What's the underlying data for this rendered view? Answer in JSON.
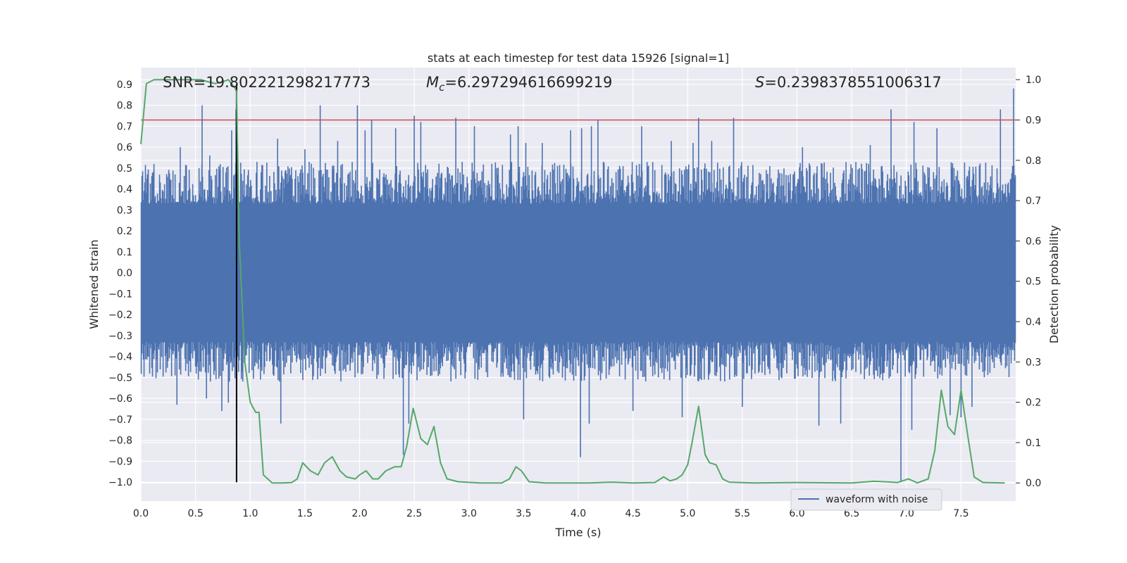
{
  "chart_data": {
    "type": "line",
    "title": "stats at each timestep for test data 15926 [signal=1]",
    "xlabel": "Time (s)",
    "ylabel": "Whitened strain",
    "y2label": "Detection probability",
    "xlim": [
      0.0,
      8.0
    ],
    "ylim": [
      -1.09,
      0.98
    ],
    "y2lim": [
      -0.045,
      1.03
    ],
    "xticks": [
      "0.0",
      "0.5",
      "1.0",
      "1.5",
      "2.0",
      "2.5",
      "3.0",
      "3.5",
      "4.0",
      "4.5",
      "5.0",
      "5.5",
      "6.0",
      "6.5",
      "7.0",
      "7.5"
    ],
    "yticks": [
      "0.9",
      "0.8",
      "0.7",
      "0.6",
      "0.5",
      "0.4",
      "0.3",
      "0.2",
      "0.1",
      "0.0",
      "−0.1",
      "−0.2",
      "−0.3",
      "−0.4",
      "−0.5",
      "−0.6",
      "−0.7",
      "−0.8",
      "−0.9",
      "−1.0"
    ],
    "y2ticks": [
      "1.0",
      "0.9",
      "0.8",
      "0.7",
      "0.6",
      "0.5",
      "0.4",
      "0.3",
      "0.2",
      "0.1",
      "0.0"
    ],
    "annotations": {
      "snr": "SNR=19.802221298217773",
      "mc_symbol": "M",
      "mc_sub": "c",
      "mc_value": "=6.297294616699219",
      "s_symbol": "S",
      "s_value": "=0.2398378551006317"
    },
    "legend": {
      "position": "lower-right",
      "entries": [
        "waveform with noise"
      ]
    },
    "threshold": {
      "axis": "right",
      "value": 0.9,
      "color": "#c44e52"
    },
    "marker_line": {
      "x": 0.875,
      "y_from": -1.0,
      "y_to": 0.9,
      "color": "#000000"
    },
    "colors": {
      "waveform": "#4c72b0",
      "probability": "#55a868",
      "background": "#eaeaf2",
      "grid": "#ffffff"
    },
    "series": [
      {
        "name": "waveform with noise",
        "axis": "left",
        "color": "#4c72b0",
        "band": [
          -0.33,
          0.33
        ],
        "peaks_up": [
          [
            0.06,
            0.47
          ],
          [
            0.12,
            0.52
          ],
          [
            0.36,
            0.6
          ],
          [
            0.56,
            0.8
          ],
          [
            0.63,
            0.56
          ],
          [
            0.83,
            0.68
          ],
          [
            0.87,
            0.78
          ],
          [
            1.25,
            0.64
          ],
          [
            1.5,
            0.59
          ],
          [
            1.64,
            0.8
          ],
          [
            1.8,
            0.63
          ],
          [
            1.98,
            0.8
          ],
          [
            2.05,
            0.68
          ],
          [
            2.11,
            0.73
          ],
          [
            2.33,
            0.69
          ],
          [
            2.5,
            0.75
          ],
          [
            2.56,
            0.72
          ],
          [
            2.88,
            0.74
          ],
          [
            3.05,
            0.7
          ],
          [
            3.38,
            0.66
          ],
          [
            3.45,
            0.7
          ],
          [
            3.52,
            0.62
          ],
          [
            3.67,
            0.62
          ],
          [
            3.93,
            0.68
          ],
          [
            4.03,
            0.69
          ],
          [
            4.12,
            0.7
          ],
          [
            4.18,
            0.73
          ],
          [
            4.58,
            0.7
          ],
          [
            4.85,
            0.63
          ],
          [
            5.05,
            0.62
          ],
          [
            5.1,
            0.74
          ],
          [
            5.22,
            0.63
          ],
          [
            5.42,
            0.74
          ],
          [
            6.05,
            0.6
          ],
          [
            6.67,
            0.61
          ],
          [
            6.86,
            0.78
          ],
          [
            7.07,
            0.72
          ],
          [
            7.28,
            0.69
          ],
          [
            7.86,
            0.78
          ],
          [
            7.98,
            0.88
          ]
        ],
        "peaks_down": [
          [
            0.33,
            -0.63
          ],
          [
            0.6,
            -0.6
          ],
          [
            0.74,
            -0.66
          ],
          [
            0.8,
            -0.62
          ],
          [
            1.28,
            -0.72
          ],
          [
            2.4,
            -0.87
          ],
          [
            2.45,
            -0.72
          ],
          [
            3.5,
            -0.7
          ],
          [
            4.02,
            -0.88
          ],
          [
            4.1,
            -0.72
          ],
          [
            4.5,
            -0.66
          ],
          [
            4.95,
            -0.69
          ],
          [
            5.5,
            -0.64
          ],
          [
            6.2,
            -0.73
          ],
          [
            6.4,
            -0.72
          ],
          [
            6.95,
            -1.0
          ],
          [
            7.05,
            -0.75
          ],
          [
            7.4,
            -0.68
          ],
          [
            7.5,
            -0.69
          ],
          [
            7.6,
            -0.64
          ]
        ]
      },
      {
        "name": "detection probability",
        "axis": "right",
        "color": "#55a868",
        "points": [
          [
            0.0,
            0.84
          ],
          [
            0.05,
            0.99
          ],
          [
            0.12,
            1.0
          ],
          [
            0.3,
            1.0
          ],
          [
            0.55,
            1.0
          ],
          [
            0.6,
            0.996
          ],
          [
            0.68,
            0.99
          ],
          [
            0.75,
            0.995
          ],
          [
            0.8,
            1.0
          ],
          [
            0.86,
            0.98
          ],
          [
            0.875,
            0.97
          ],
          [
            0.9,
            0.6
          ],
          [
            0.95,
            0.3
          ],
          [
            1.0,
            0.2
          ],
          [
            1.05,
            0.175
          ],
          [
            1.08,
            0.175
          ],
          [
            1.12,
            0.02
          ],
          [
            1.2,
            0.0
          ],
          [
            1.3,
            0.0
          ],
          [
            1.38,
            0.001
          ],
          [
            1.43,
            0.01
          ],
          [
            1.48,
            0.05
          ],
          [
            1.55,
            0.03
          ],
          [
            1.62,
            0.02
          ],
          [
            1.68,
            0.05
          ],
          [
            1.75,
            0.065
          ],
          [
            1.82,
            0.03
          ],
          [
            1.88,
            0.015
          ],
          [
            1.96,
            0.01
          ],
          [
            2.0,
            0.02
          ],
          [
            2.06,
            0.03
          ],
          [
            2.12,
            0.01
          ],
          [
            2.17,
            0.01
          ],
          [
            2.24,
            0.03
          ],
          [
            2.32,
            0.04
          ],
          [
            2.38,
            0.04
          ],
          [
            2.43,
            0.09
          ],
          [
            2.49,
            0.185
          ],
          [
            2.56,
            0.11
          ],
          [
            2.62,
            0.095
          ],
          [
            2.68,
            0.14
          ],
          [
            2.74,
            0.05
          ],
          [
            2.8,
            0.01
          ],
          [
            2.9,
            0.003
          ],
          [
            3.1,
            0.0
          ],
          [
            3.3,
            0.0
          ],
          [
            3.37,
            0.01
          ],
          [
            3.43,
            0.04
          ],
          [
            3.48,
            0.03
          ],
          [
            3.55,
            0.003
          ],
          [
            3.7,
            0.0
          ],
          [
            3.9,
            0.0
          ],
          [
            4.1,
            0.0
          ],
          [
            4.3,
            0.002
          ],
          [
            4.5,
            0.0
          ],
          [
            4.7,
            0.001
          ],
          [
            4.78,
            0.015
          ],
          [
            4.84,
            0.005
          ],
          [
            4.9,
            0.01
          ],
          [
            4.95,
            0.02
          ],
          [
            5.0,
            0.045
          ],
          [
            5.04,
            0.1
          ],
          [
            5.1,
            0.19
          ],
          [
            5.16,
            0.07
          ],
          [
            5.2,
            0.05
          ],
          [
            5.26,
            0.045
          ],
          [
            5.32,
            0.01
          ],
          [
            5.38,
            0.002
          ],
          [
            5.6,
            0.0
          ],
          [
            6.0,
            0.001
          ],
          [
            6.5,
            0.0
          ],
          [
            6.7,
            0.004
          ],
          [
            6.8,
            0.003
          ],
          [
            6.92,
            0.001
          ],
          [
            7.02,
            0.01
          ],
          [
            7.1,
            0.0
          ],
          [
            7.2,
            0.01
          ],
          [
            7.26,
            0.08
          ],
          [
            7.32,
            0.23
          ],
          [
            7.38,
            0.14
          ],
          [
            7.44,
            0.12
          ],
          [
            7.5,
            0.23
          ],
          [
            7.56,
            0.12
          ],
          [
            7.62,
            0.015
          ],
          [
            7.7,
            0.001
          ],
          [
            7.9,
            0.0
          ]
        ]
      }
    ]
  }
}
